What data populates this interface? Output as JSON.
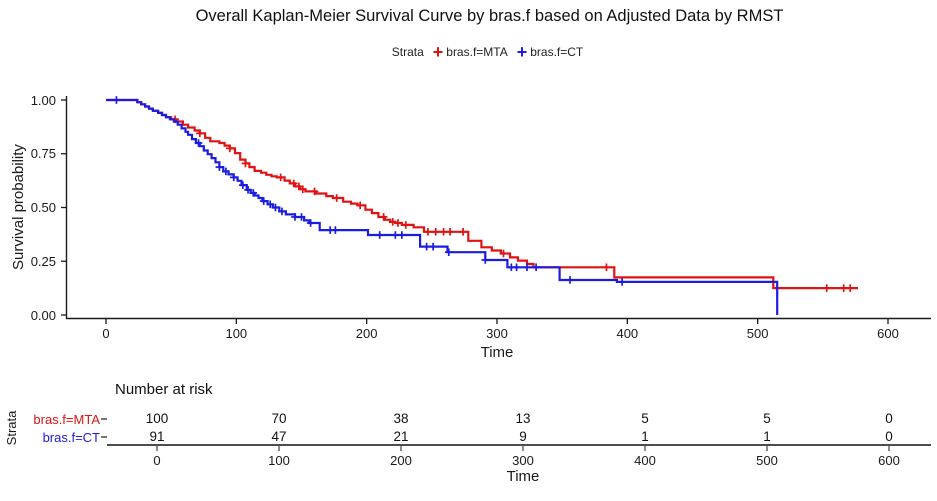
{
  "chart_data": {
    "type": "line",
    "subtype": "kaplan-meier-step-curve",
    "title": "Overall Kaplan-Meier Survival Curve by bras.f based on Adjusted Data by RMST",
    "xlabel": "Time",
    "ylabel": "Survival probability",
    "xlim": [
      -30,
      635
    ],
    "ylim": [
      0,
      1.0
    ],
    "x_ticks": [
      0,
      100,
      200,
      300,
      400,
      500,
      600
    ],
    "y_ticks": [
      1.0,
      0.75,
      0.5,
      0.25,
      0.0
    ],
    "grid": false,
    "legend_title": "Strata",
    "legend_position": "top",
    "background": "#ffffff",
    "axis_color": "#1a1a1a",
    "series": [
      {
        "name": "bras.f=MTA",
        "color": "#e01212",
        "end_time": 577,
        "steps": [
          [
            0,
            1.0
          ],
          [
            21,
            1.0
          ],
          [
            24,
            0.99
          ],
          [
            27,
            0.98
          ],
          [
            30,
            0.97
          ],
          [
            33,
            0.96
          ],
          [
            36,
            0.95
          ],
          [
            40,
            0.94
          ],
          [
            43,
            0.93
          ],
          [
            46,
            0.92
          ],
          [
            50,
            0.91
          ],
          [
            54,
            0.9
          ],
          [
            59,
            0.885
          ],
          [
            63,
            0.872
          ],
          [
            68,
            0.858
          ],
          [
            72,
            0.845
          ],
          [
            76,
            0.824
          ],
          [
            80,
            0.808
          ],
          [
            87,
            0.8
          ],
          [
            91,
            0.788
          ],
          [
            95,
            0.775
          ],
          [
            99,
            0.753
          ],
          [
            103,
            0.723
          ],
          [
            107,
            0.705
          ],
          [
            110,
            0.688
          ],
          [
            114,
            0.67
          ],
          [
            119,
            0.662
          ],
          [
            123,
            0.652
          ],
          [
            127,
            0.645
          ],
          [
            131,
            0.64
          ],
          [
            137,
            0.625
          ],
          [
            141,
            0.612
          ],
          [
            145,
            0.598
          ],
          [
            149,
            0.585
          ],
          [
            153,
            0.575
          ],
          [
            161,
            0.565
          ],
          [
            169,
            0.553
          ],
          [
            174,
            0.544
          ],
          [
            182,
            0.527
          ],
          [
            188,
            0.518
          ],
          [
            193,
            0.51
          ],
          [
            199,
            0.49
          ],
          [
            204,
            0.474
          ],
          [
            209,
            0.456
          ],
          [
            214,
            0.443
          ],
          [
            218,
            0.433
          ],
          [
            222,
            0.428
          ],
          [
            227,
            0.419
          ],
          [
            236,
            0.408
          ],
          [
            244,
            0.387
          ],
          [
            278,
            0.345
          ],
          [
            288,
            0.315
          ],
          [
            296,
            0.3
          ],
          [
            303,
            0.286
          ],
          [
            310,
            0.268
          ],
          [
            316,
            0.253
          ],
          [
            323,
            0.237
          ],
          [
            328,
            0.222
          ],
          [
            390,
            0.175
          ],
          [
            512,
            0.125
          ]
        ],
        "censor_times": [
          53,
          72,
          95,
          107,
          134,
          144,
          148,
          151,
          160,
          177,
          195,
          213,
          220,
          224,
          230,
          247,
          253,
          259,
          264,
          274,
          305,
          384,
          553,
          566,
          571
        ]
      },
      {
        "name": "bras.f=CT",
        "color": "#1c1ce0",
        "end_time": 515,
        "steps": [
          [
            0,
            1.0
          ],
          [
            21,
            1.0
          ],
          [
            24,
            0.99
          ],
          [
            27,
            0.98
          ],
          [
            30,
            0.97
          ],
          [
            33,
            0.96
          ],
          [
            36,
            0.95
          ],
          [
            40,
            0.94
          ],
          [
            43,
            0.93
          ],
          [
            46,
            0.92
          ],
          [
            49,
            0.91
          ],
          [
            52,
            0.9
          ],
          [
            55,
            0.885
          ],
          [
            58,
            0.868
          ],
          [
            61,
            0.852
          ],
          [
            63,
            0.838
          ],
          [
            66,
            0.818
          ],
          [
            69,
            0.8
          ],
          [
            72,
            0.785
          ],
          [
            75,
            0.765
          ],
          [
            78,
            0.748
          ],
          [
            81,
            0.73
          ],
          [
            84,
            0.71
          ],
          [
            87,
            0.688
          ],
          [
            90,
            0.668
          ],
          [
            94,
            0.654
          ],
          [
            98,
            0.64
          ],
          [
            101,
            0.624
          ],
          [
            104,
            0.604
          ],
          [
            108,
            0.582
          ],
          [
            111,
            0.568
          ],
          [
            114,
            0.556
          ],
          [
            117,
            0.544
          ],
          [
            120,
            0.53
          ],
          [
            124,
            0.515
          ],
          [
            128,
            0.5
          ],
          [
            133,
            0.482
          ],
          [
            138,
            0.468
          ],
          [
            145,
            0.456
          ],
          [
            152,
            0.44
          ],
          [
            156,
            0.428
          ],
          [
            164,
            0.395
          ],
          [
            201,
            0.372
          ],
          [
            241,
            0.318
          ],
          [
            262,
            0.292
          ],
          [
            291,
            0.256
          ],
          [
            308,
            0.222
          ],
          [
            348,
            0.163
          ],
          [
            392,
            0.154
          ],
          [
            515,
            0.0
          ]
        ],
        "censor_times": [
          8,
          71,
          87,
          92,
          98,
          105,
          109,
          113,
          121,
          126,
          130,
          135,
          145,
          150,
          157,
          172,
          176,
          210,
          222,
          227,
          246,
          251,
          263,
          291,
          311,
          315,
          323,
          330,
          356,
          396
        ]
      }
    ],
    "risk_table": {
      "title": "Number at risk",
      "strata_label": "Strata",
      "x_label": "Time",
      "x_ticks": [
        0,
        100,
        200,
        300,
        400,
        500,
        600
      ],
      "rows": [
        {
          "label": "bras.f=MTA",
          "color": "#e01212",
          "values": [
            100,
            70,
            38,
            13,
            5,
            5,
            0
          ]
        },
        {
          "label": "bras.f=CT",
          "color": "#1c1ce0",
          "values": [
            91,
            47,
            21,
            9,
            1,
            1,
            0
          ]
        }
      ]
    }
  }
}
